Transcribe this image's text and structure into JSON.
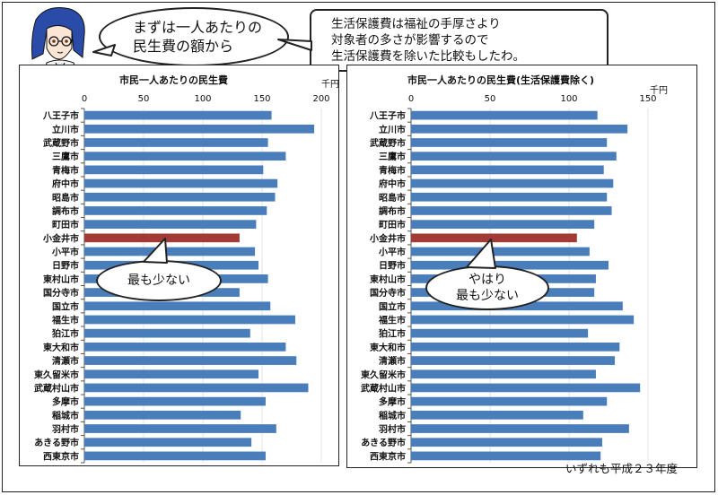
{
  "bubble_top_left": {
    "lines": [
      "まずは一人あたりの",
      "民生費の額から"
    ]
  },
  "bubble_top_right": {
    "lines": [
      "生活保護費は福祉の手厚さより",
      "対象者の多さが影響するので",
      "生活保護費を除いた比較もしたわ。"
    ]
  },
  "speech_left": {
    "lines": [
      "最も少ない"
    ]
  },
  "speech_right": {
    "lines": [
      "やはり",
      "最も少ない"
    ]
  },
  "footer_note": "いずれも平成２３年度",
  "colors": {
    "bar": "#4a7ebb",
    "highlight": "#a23b36"
  },
  "chart_data": [
    {
      "type": "bar",
      "orientation": "horizontal",
      "title": "市民一人あたりの民生費",
      "unit": "千円",
      "xlim": [
        0,
        200
      ],
      "ticks": [
        0,
        50,
        100,
        150,
        200
      ],
      "highlight": "小金井市",
      "categories": [
        "八王子市",
        "立川市",
        "武蔵野市",
        "三鷹市",
        "青梅市",
        "府中市",
        "昭島市",
        "調布市",
        "町田市",
        "小金井市",
        "小平市",
        "日野市",
        "東村山市",
        "国分寺市",
        "国立市",
        "福生市",
        "狛江市",
        "東大和市",
        "清瀬市",
        "東久留米市",
        "武蔵村山市",
        "多摩市",
        "稲城市",
        "羽村市",
        "あきる野市",
        "西東京市"
      ],
      "values": [
        158,
        194,
        155,
        170,
        151,
        163,
        161,
        154,
        145,
        131,
        144,
        147,
        155,
        131,
        157,
        178,
        140,
        170,
        179,
        147,
        189,
        153,
        132,
        162,
        141,
        153
      ]
    },
    {
      "type": "bar",
      "orientation": "horizontal",
      "title": "市民一人あたりの民生費(生活保護費除く)",
      "unit": "千円",
      "xlim": [
        0,
        150
      ],
      "ticks": [
        0,
        50,
        100,
        150
      ],
      "highlight": "小金井市",
      "categories": [
        "八王子市",
        "立川市",
        "武蔵野市",
        "三鷹市",
        "青梅市",
        "府中市",
        "昭島市",
        "調布市",
        "町田市",
        "小金井市",
        "小平市",
        "日野市",
        "東村山市",
        "国分寺市",
        "国立市",
        "福生市",
        "狛江市",
        "東大和市",
        "清瀬市",
        "東久留米市",
        "武蔵村山市",
        "多摩市",
        "稲城市",
        "羽村市",
        "あきる野市",
        "西東京市"
      ],
      "values": [
        118,
        137,
        124,
        130,
        122,
        128,
        124,
        127,
        116,
        105,
        113,
        125,
        117,
        116,
        134,
        141,
        112,
        132,
        129,
        117,
        145,
        124,
        109,
        138,
        121,
        120
      ]
    }
  ]
}
